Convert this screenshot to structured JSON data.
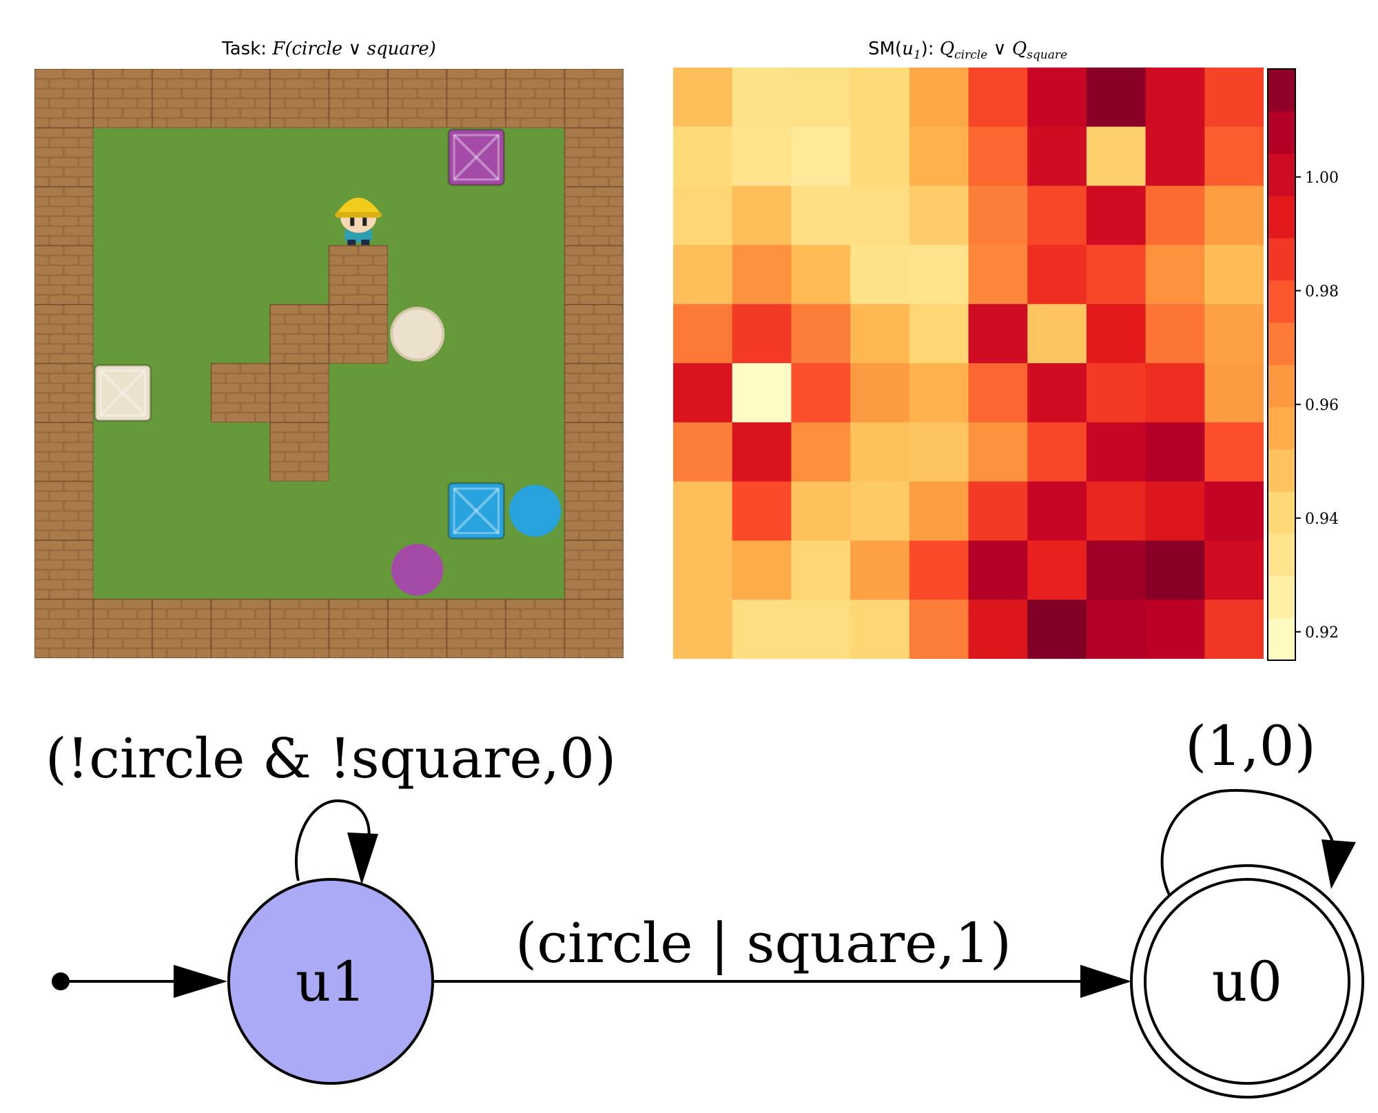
{
  "left_panel": {
    "title_prefix": "Task:",
    "title_formula": "F(circle ∨ square)",
    "grid": {
      "rows": [
        "WWWWWWWWWW",
        "W......q.W",
        "W....A...W",
        "W....W...W",
        "W...WWo..W",
        "WB.WW....W",
        "W...W....W",
        "W......QcW",
        "W.....p..W",
        "WWWWWWWWWW"
      ],
      "legend": {
        "W": "brick-wall",
        ".": "grass",
        "A": "agent",
        "q": "purple-square",
        "Q": "blue-square",
        "B": "beige-square",
        "o": "beige-circle",
        "c": "blue-circle",
        "p": "purple-circle"
      },
      "colors": {
        "wall": "#9a6a3e",
        "wall_mortar": "#7a5230",
        "grass": "#66993a",
        "purple": "#a44ba7",
        "blue": "#29a3dd",
        "beige": "#ece1cc",
        "agent_hat": "#f2cc1d",
        "agent_shirt": "#2f9fb0"
      }
    }
  },
  "right_panel": {
    "title_prefix": "SM(",
    "title_sub_var": "u",
    "title_sub_index": "1",
    "title_mid": "):",
    "title_formula_q1": "Q",
    "title_formula_q1_sub": "circle",
    "title_formula_or": "∨",
    "title_formula_q2": "Q",
    "title_formula_q2_sub": "square"
  },
  "chart_data": {
    "type": "heatmap",
    "title": "SM(u1): Q_circle ∨ Q_square",
    "colormap": "YlOrRd",
    "vmin": 0.915,
    "vmax": 1.019,
    "colorbar_ticks": [
      0.92,
      0.94,
      0.96,
      0.98,
      1.0
    ],
    "colorbar_tick_labels": [
      "0.92",
      "0.94",
      "0.96",
      "0.98",
      "1.00"
    ],
    "values": [
      [
        0.95,
        0.935,
        0.936,
        0.94,
        0.958,
        0.982,
        1.003,
        1.017,
        1.0,
        0.983
      ],
      [
        0.94,
        0.934,
        0.93,
        0.94,
        0.954,
        0.975,
        1.0,
        0.944,
        1.0,
        0.977
      ],
      [
        0.942,
        0.95,
        0.937,
        0.938,
        0.945,
        0.97,
        0.982,
        1.0,
        0.974,
        0.961
      ],
      [
        0.95,
        0.965,
        0.951,
        0.935,
        0.934,
        0.968,
        0.988,
        0.982,
        0.965,
        0.951
      ],
      [
        0.971,
        0.985,
        0.97,
        0.952,
        0.942,
        1.0,
        0.948,
        0.993,
        0.972,
        0.96
      ],
      [
        0.996,
        0.917,
        0.98,
        0.962,
        0.954,
        0.975,
        1.0,
        0.985,
        0.988,
        0.962
      ],
      [
        0.97,
        0.996,
        0.966,
        0.949,
        0.948,
        0.965,
        0.982,
        1.003,
        1.008,
        0.98
      ],
      [
        0.95,
        0.981,
        0.949,
        0.946,
        0.961,
        0.985,
        1.003,
        0.99,
        0.995,
        1.004
      ],
      [
        0.95,
        0.956,
        0.942,
        0.96,
        0.981,
        1.008,
        0.991,
        1.012,
        1.017,
        1.0
      ],
      [
        0.95,
        0.938,
        0.938,
        0.942,
        0.97,
        0.995,
        1.02,
        1.008,
        1.006,
        0.986
      ]
    ]
  },
  "fsm": {
    "states": [
      {
        "id": "u1",
        "label": "u1",
        "fill": "#aaaaf7",
        "accepting": false,
        "initial": true
      },
      {
        "id": "u0",
        "label": "u0",
        "fill": "#ffffff",
        "accepting": true,
        "initial": false
      }
    ],
    "edges": [
      {
        "from": "u1",
        "to": "u1",
        "label": "(!circle & !square,0)"
      },
      {
        "from": "u1",
        "to": "u0",
        "label": "(circle | square,1)"
      },
      {
        "from": "u0",
        "to": "u0",
        "label": "(1,0)"
      }
    ]
  }
}
